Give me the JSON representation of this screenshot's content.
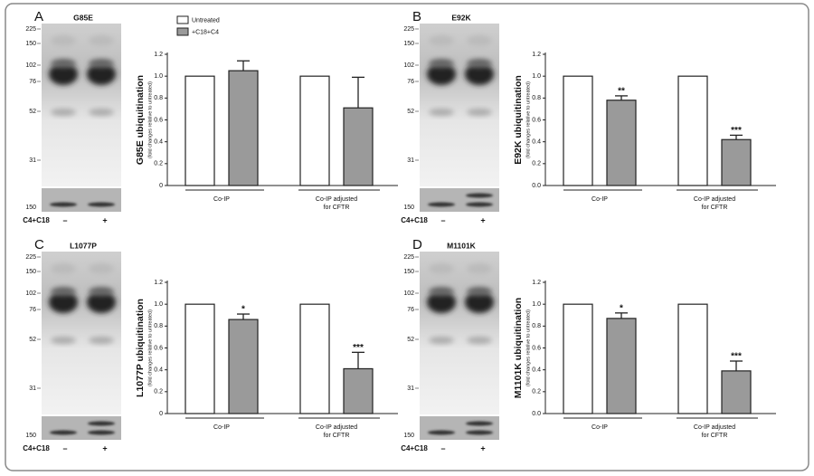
{
  "chart_data": [
    {
      "type": "bar",
      "panel": "A",
      "title": "G85E",
      "blot": {
        "mw": [
          225,
          150,
          102,
          76,
          52,
          31
        ],
        "strip_mw": 150,
        "treatment": "C4+C18",
        "lanes": [
          "–",
          "+"
        ]
      },
      "ylabel": "G85E ubiquitination",
      "ylabel_sub": "(fold changes relative to untreated)",
      "categories": [
        [
          "Co-IP"
        ],
        [
          "Co-IP adjusted",
          "for CFTR"
        ]
      ],
      "series": [
        {
          "name": "Untreated",
          "color": "#ffffff",
          "values": [
            1.0,
            1.0
          ]
        },
        {
          "name": "+C18+C4",
          "color": "#9a9a9a",
          "values": [
            1.05,
            0.71
          ],
          "errors": [
            0.09,
            0.28
          ]
        }
      ],
      "ylim": [
        0,
        1.2
      ],
      "yticks": [
        0,
        {
          "value": 0.2,
          "label": "0.2"
        },
        {
          "value": 0.4,
          "label": "0.4"
        },
        {
          "value": 0.6,
          "label": "0.6"
        },
        {
          "value": 0.8,
          "label": "0.8"
        },
        {
          "value": 1.0,
          "label": "1.0"
        },
        {
          "value": 1.2,
          "label": "1.2"
        }
      ],
      "legend": "top"
    },
    {
      "type": "bar",
      "panel": "B",
      "title": "E92K",
      "blot": {
        "mw": [
          225,
          150,
          102,
          76,
          52,
          31
        ],
        "strip_mw": 150,
        "treatment": "C4+C18",
        "lanes": [
          "–",
          "+"
        ]
      },
      "ylabel": "E92K ubiquitination",
      "ylabel_sub": "(fold changes relative to untreated)",
      "categories": [
        [
          "Co-IP"
        ],
        [
          "Co-IP adjusted",
          "for CFTR"
        ]
      ],
      "series": [
        {
          "name": "Untreated",
          "color": "#ffffff",
          "values": [
            1.0,
            1.0
          ]
        },
        {
          "name": "+C18+C4",
          "color": "#9a9a9a",
          "values": [
            0.78,
            0.42
          ],
          "errors": [
            0.04,
            0.04
          ],
          "significance": [
            "**",
            "***"
          ]
        }
      ],
      "ylim": [
        0,
        1.2
      ],
      "yticks": [
        {
          "value": 0,
          "label": "0.0"
        },
        {
          "value": 0.2,
          "label": "0.2"
        },
        {
          "value": 0.4,
          "label": "0.4"
        },
        {
          "value": 0.6,
          "label": "0.6"
        },
        {
          "value": 0.8,
          "label": "0.8"
        },
        {
          "value": 1.0,
          "label": "1.0"
        },
        {
          "value": 1.2,
          "label": "1.2"
        }
      ]
    },
    {
      "type": "bar",
      "panel": "C",
      "title": "L1077P",
      "blot": {
        "mw": [
          225,
          150,
          102,
          76,
          52,
          31
        ],
        "strip_mw": 150,
        "treatment": "C4+C18",
        "lanes": [
          "–",
          "+"
        ]
      },
      "ylabel": "L1077P ubiquitination",
      "ylabel_sub": "(fold changes relative to untreated)",
      "categories": [
        [
          "Co-IP"
        ],
        [
          "Co-IP adjusted",
          "for CFTR"
        ]
      ],
      "series": [
        {
          "name": "Untreated",
          "color": "#ffffff",
          "values": [
            1.0,
            1.0
          ]
        },
        {
          "name": "+C18+C4",
          "color": "#9a9a9a",
          "values": [
            0.86,
            0.41
          ],
          "errors": [
            0.05,
            0.15
          ],
          "significance": [
            "*",
            "***"
          ]
        }
      ],
      "ylim": [
        0,
        1.2
      ],
      "yticks": [
        0,
        {
          "value": 0.2,
          "label": "0.2"
        },
        {
          "value": 0.4,
          "label": "0.4"
        },
        {
          "value": 0.6,
          "label": "0.6"
        },
        {
          "value": 0.8,
          "label": "0.8"
        },
        {
          "value": 1.0,
          "label": "1.0"
        },
        {
          "value": 1.2,
          "label": "1.2"
        }
      ]
    },
    {
      "type": "bar",
      "panel": "D",
      "title": "M1101K",
      "blot": {
        "mw": [
          225,
          150,
          102,
          76,
          52,
          31
        ],
        "strip_mw": 150,
        "treatment": "C4+C18",
        "lanes": [
          "–",
          "+"
        ]
      },
      "ylabel": "M1101K ubiquitination",
      "ylabel_sub": "(fold changes relative to untreated)",
      "categories": [
        [
          "Co-IP"
        ],
        [
          "Co-IP adjusted",
          "for CFTR"
        ]
      ],
      "series": [
        {
          "name": "Untreated",
          "color": "#ffffff",
          "values": [
            1.0,
            1.0
          ]
        },
        {
          "name": "+C18+C4",
          "color": "#9a9a9a",
          "values": [
            0.87,
            0.39
          ],
          "errors": [
            0.05,
            0.09
          ],
          "significance": [
            "*",
            "***"
          ]
        }
      ],
      "ylim": [
        0,
        1.2
      ],
      "yticks": [
        {
          "value": 0,
          "label": "0.0"
        },
        {
          "value": 0.2,
          "label": "0.2"
        },
        {
          "value": 0.4,
          "label": "0.4"
        },
        {
          "value": 0.6,
          "label": "0.6"
        },
        {
          "value": 0.8,
          "label": "0.8"
        },
        {
          "value": 1.0,
          "label": "1.0"
        },
        {
          "value": 1.2,
          "label": "1.2"
        }
      ]
    }
  ]
}
